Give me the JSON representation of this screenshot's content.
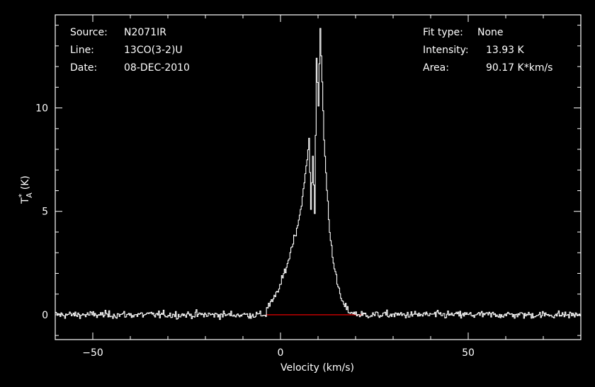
{
  "info_left": {
    "source_label": "Source:",
    "source_value": "N2071IR",
    "line_label": "Line:",
    "line_value": "13CO(3-2)U",
    "date_label": "Date:",
    "date_value": "08-DEC-2010"
  },
  "info_right": {
    "fit_label": "Fit type:",
    "fit_value": "None",
    "intensity_label": "Intensity:",
    "intensity_value": "13.93 K",
    "area_label": "Area:",
    "area_value": "90.17 K*km/s"
  },
  "chart_data": {
    "type": "line",
    "xlabel": "Velocity (km/s)",
    "ylabel_main": "T",
    "ylabel_sup": "*",
    "ylabel_sub": "A",
    "ylabel_unit": "(K)",
    "xlim": [
      -60,
      80
    ],
    "ylim": [
      -1.2,
      14.5
    ],
    "xticks": [
      -50,
      0,
      50
    ],
    "yticks": [
      0,
      5,
      10
    ],
    "x_tick_labels": [
      "−50",
      "0",
      "50"
    ],
    "y_tick_labels": [
      "0",
      "5",
      "10"
    ],
    "baseline": {
      "x_start": -4,
      "x_end": 22,
      "y": 0,
      "color": "#ff0000"
    },
    "series": [
      {
        "line_color": "#ffffff",
        "x": [
          -4,
          -3,
          -2,
          -1,
          0,
          1,
          2,
          3,
          4,
          5,
          6,
          7,
          7.5,
          8,
          8.5,
          9,
          9.5,
          10,
          10.5,
          11,
          11.5,
          12,
          13,
          14,
          15,
          16,
          17,
          18,
          19,
          20,
          21,
          22
        ],
        "y": [
          0.3,
          0.5,
          0.7,
          1.1,
          1.5,
          2.1,
          2.6,
          3.4,
          4.0,
          4.8,
          6.0,
          7.5,
          8.5,
          5.2,
          7.6,
          5.0,
          12.5,
          10.0,
          13.9,
          11.2,
          8.5,
          6.8,
          4.0,
          2.6,
          1.5,
          0.8,
          0.4,
          0.2,
          0.1,
          0.05,
          0.0,
          0.0
        ]
      }
    ],
    "noise_sigma": 0.18,
    "noise_region_x": [
      -60,
      80
    ]
  }
}
